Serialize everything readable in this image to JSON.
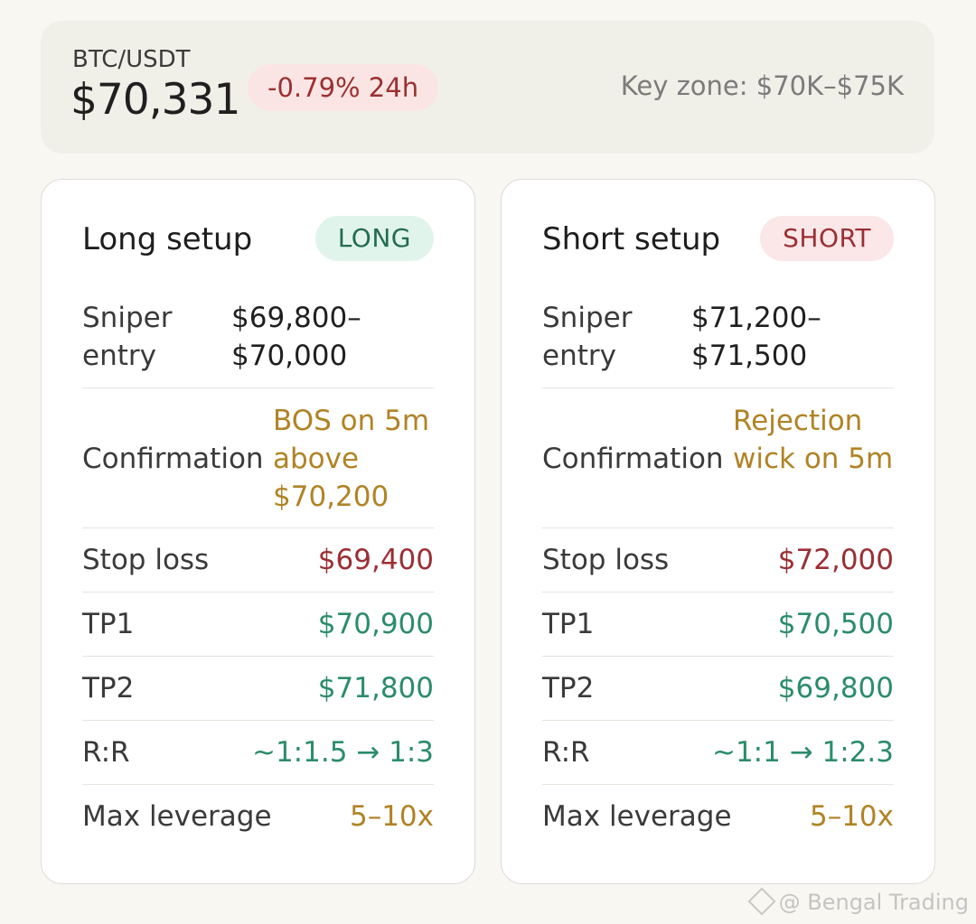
{
  "ticker": {
    "pair": "BTC/USDT",
    "price": "$70,331",
    "change": "-0.79% 24h",
    "key_zone": "Key zone: $70K–$75K"
  },
  "long": {
    "title": "Long setup",
    "badge": "LONG",
    "entry_label": "Sniper entry",
    "entry_value": "$69,800–$70,000",
    "confirm_label": "Confirmation",
    "confirm_value": "BOS on 5m above $70,200",
    "stop_label": "Stop loss",
    "stop_value": "$69,400",
    "tp1_label": "TP1",
    "tp1_value": "$70,900",
    "tp2_label": "TP2",
    "tp2_value": "$71,800",
    "rr_label": "R:R",
    "rr_value": "~1:1.5 → 1:3",
    "lev_label": "Max leverage",
    "lev_value": "5–10x"
  },
  "short": {
    "title": "Short setup",
    "badge": "SHORT",
    "entry_label": "Sniper entry",
    "entry_value": "$71,200–$71,500",
    "confirm_label": "Confirmation",
    "confirm_value": "Rejection wick on 5m",
    "stop_label": "Stop loss",
    "stop_value": "$72,000",
    "tp1_label": "TP1",
    "tp1_value": "$70,500",
    "tp2_label": "TP2",
    "tp2_value": "$69,800",
    "rr_label": "R:R",
    "rr_value": "~1:1 → 1:2.3",
    "lev_label": "Max leverage",
    "lev_value": "5–10x"
  },
  "watermark": {
    "text": "@ Bengal Trading",
    "icon": "binance-logo-icon"
  },
  "colors": {
    "background": "#f8f7f2",
    "negative": "#9a2f34",
    "positive": "#2b8c6b",
    "warning": "#b08325",
    "long_badge_bg": "#e1f4ec",
    "short_badge_bg": "#fbe7e7"
  }
}
